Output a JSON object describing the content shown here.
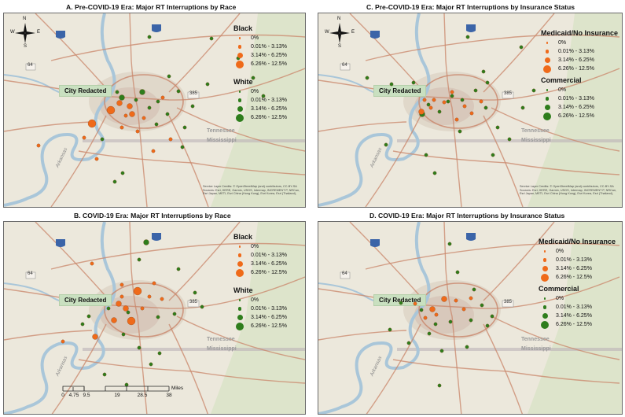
{
  "panels": {
    "A": {
      "title": "A. Pre-COVID-19 Era: Major RT Interruptions by Race"
    },
    "B": {
      "title": "B. COVID-19 Era: Major RT Interruptions by Race"
    },
    "C": {
      "title": "C. Pre-COVID-19 Era: Major RT Interruptions by Insurance Status"
    },
    "D": {
      "title": "D. COVID-19 Era: Major RT Interruptions by Insurance Status"
    }
  },
  "map_labels": {
    "city": "City Redacted",
    "tennessee": "Tennessee",
    "mississippi": "Mississippi",
    "arkansas": "Arkansas",
    "highway_64": "64",
    "highway_385": "385"
  },
  "compass": {
    "n": "N",
    "s": "S",
    "e": "E",
    "w": "W"
  },
  "legend_ranges": [
    "0%",
    "0.01% - 3.13%",
    "3.14% - 6.25%",
    "6.26% - 12.5%"
  ],
  "legend_groups": {
    "black": "Black",
    "white": "White",
    "medicaid": "Medicaid/No Insurance",
    "commercial": "Commercial"
  },
  "colors": {
    "orange": "#ef6a1a",
    "green": "#2e7d1c",
    "road": "#c9866a",
    "water": "#a9c6d9",
    "land": "#ece8dc"
  },
  "attribution": "Service Layer Credits: © OpenStreetMap (and) contributors, CC-BY-SA Sources: Esri, HERE, Garmin, USGS, Intermap, INCREMENT P, NRCan, Esri Japan, METI, Esri China (Hong Kong), Esri Korea, Esri (Thailand),",
  "scalebar": {
    "unit": "Miles",
    "ticks": [
      "0",
      "4.75",
      "9.5",
      "19",
      "28.5",
      "38"
    ]
  }
}
